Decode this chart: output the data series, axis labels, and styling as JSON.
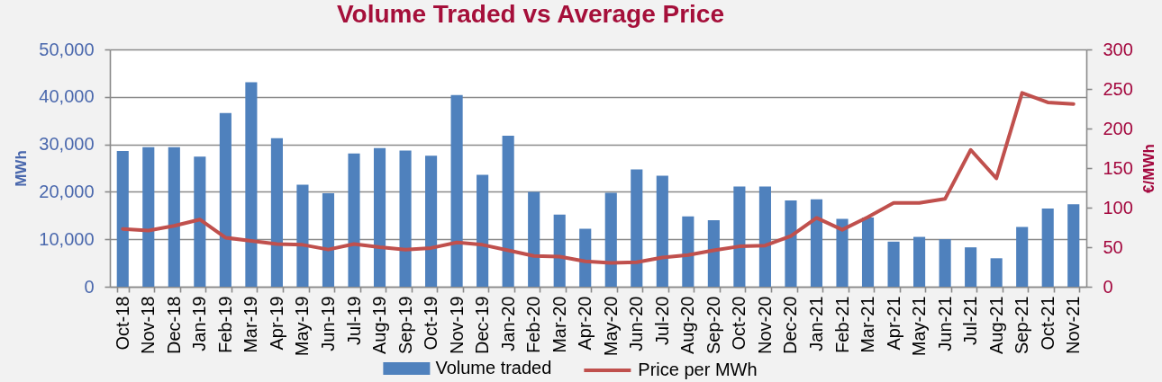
{
  "chart_data": {
    "type": "bar",
    "title": "Volume Traded vs Average Price",
    "ylabel": "MWh",
    "y2label": "€/MWh",
    "categories": [
      "Oct-18",
      "Nov-18",
      "Dec-18",
      "Jan-19",
      "Feb-19",
      "Mar-19",
      "Apr-19",
      "May-19",
      "Jun-19",
      "Jul-19",
      "Aug-19",
      "Sep-19",
      "Oct-19",
      "Nov-19",
      "Dec-19",
      "Jan-20",
      "Feb-20",
      "Mar-20",
      "Apr-20",
      "May-20",
      "Jun-20",
      "Jul-20",
      "Aug-20",
      "Sep-20",
      "Oct-20",
      "Nov-20",
      "Dec-20",
      "Jan-21",
      "Feb-21",
      "Mar-21",
      "Apr-21",
      "May-21",
      "Jun-21",
      "Jul-21",
      "Aug-21",
      "Sep-21",
      "Oct-21",
      "Nov-21"
    ],
    "series": [
      {
        "name": "Volume traded",
        "color": "#4f81bd",
        "values": [
          28600,
          29400,
          29400,
          27400,
          36600,
          43100,
          31300,
          21500,
          19700,
          28100,
          29200,
          28700,
          27600,
          40400,
          23600,
          31800,
          20000,
          15200,
          12200,
          19800,
          24700,
          23400,
          14800,
          14000,
          21100,
          21100,
          18200,
          18400,
          14300,
          14600,
          9500,
          10500,
          10000,
          8300,
          6000,
          12600,
          16500,
          17400
        ]
      },
      {
        "name": "Price per MWh",
        "type": "line",
        "axis": "y2",
        "color": "#c0504d",
        "values": [
          73,
          71,
          77,
          85,
          62,
          58,
          54,
          53,
          47,
          54,
          50,
          47,
          49,
          56,
          53,
          46,
          39,
          38,
          32,
          30,
          31,
          37,
          40,
          46,
          51,
          52,
          64,
          87,
          72,
          88,
          106,
          106,
          111,
          173,
          137,
          245,
          233,
          231
        ]
      }
    ],
    "ylim": [
      0,
      50000
    ],
    "yticks": [
      0,
      {
        "value": 10000,
        "label": "10,000"
      },
      {
        "value": 20000,
        "label": "20,000"
      },
      {
        "value": 30000,
        "label": "30,000"
      },
      {
        "value": 40000,
        "label": "40,000"
      },
      {
        "value": 50000,
        "label": "50,000"
      }
    ],
    "y2lim": [
      0,
      300
    ],
    "y2ticks": [
      0,
      50,
      100,
      150,
      200,
      250,
      300
    ],
    "grid": "y",
    "legend": "bottom"
  }
}
